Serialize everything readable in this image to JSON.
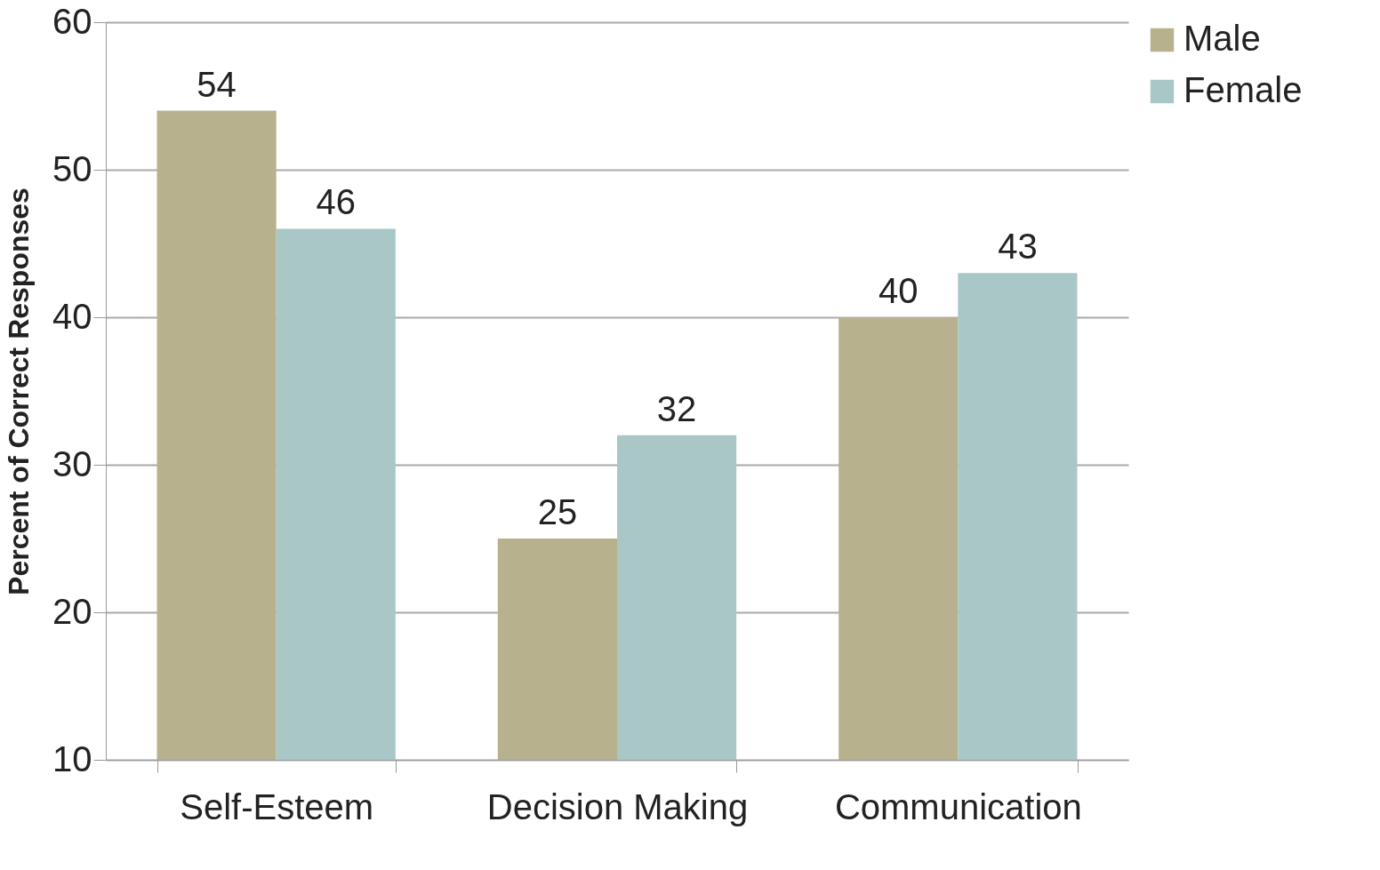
{
  "chart_data": {
    "type": "bar",
    "ylabel": "Percent of Correct Responses",
    "categories": [
      "Self-Esteem",
      "Decision Making",
      "Communication"
    ],
    "series": [
      {
        "name": "Male",
        "color": "#b8b18d",
        "values": [
          54,
          25,
          40
        ]
      },
      {
        "name": "Female",
        "color": "#aac7c8",
        "values": [
          46,
          32,
          43
        ]
      }
    ],
    "ylim": [
      10,
      60
    ],
    "yticks": [
      10,
      20,
      30,
      40,
      50,
      60
    ],
    "grid": "y",
    "legend": "right",
    "data_labels": true
  }
}
